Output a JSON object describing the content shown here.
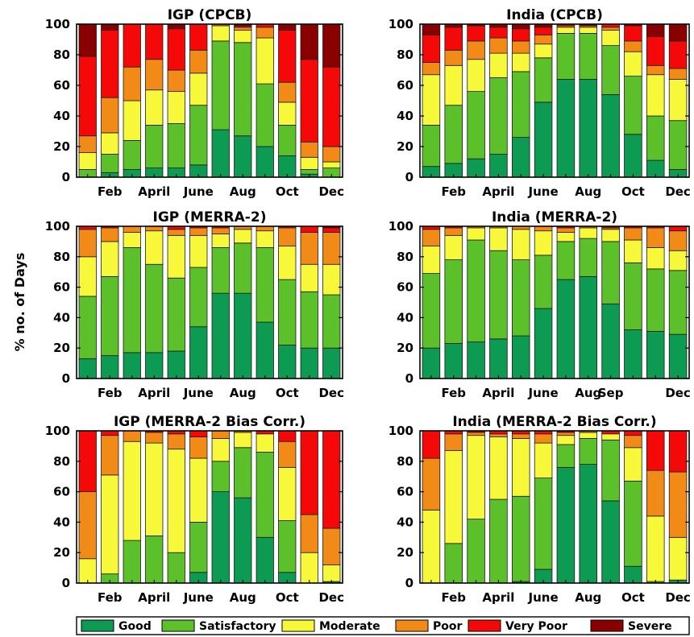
{
  "ylabel": "% no. of Days",
  "category_colors": {
    "Good": "#0d9a53",
    "Satisfactory": "#5cc02a",
    "Moderate": "#f8f83a",
    "Poor": "#f28a18",
    "Very Poor": "#f50808",
    "Severe": "#8a0000"
  },
  "legend": [
    "Good",
    "Satisfactory",
    "Moderate",
    "Poor",
    "Very Poor",
    "Severe"
  ],
  "chart_data": [
    {
      "type": "bar",
      "stacked": true,
      "title": "IGP (CPCB)",
      "ylim": [
        0,
        100
      ],
      "yticks": [
        0,
        20,
        40,
        60,
        80,
        100
      ],
      "categories": [
        "Jan",
        "Feb",
        "Mar",
        "April",
        "May",
        "June",
        "Jul",
        "Aug",
        "Sep",
        "Oct",
        "Nov",
        "Dec"
      ],
      "xtick_labels": [
        "",
        "Feb",
        "",
        "April",
        "",
        "June",
        "",
        "Aug",
        "",
        "Oct",
        "",
        "Dec"
      ],
      "series": [
        {
          "name": "Good",
          "values": [
            0,
            3,
            5,
            6,
            6,
            8,
            31,
            27,
            20,
            14,
            2,
            0
          ]
        },
        {
          "name": "Satisfactory",
          "values": [
            5,
            12,
            19,
            28,
            29,
            39,
            58,
            61,
            41,
            20,
            3,
            6
          ]
        },
        {
          "name": "Moderate",
          "values": [
            11,
            14,
            26,
            23,
            21,
            21,
            10,
            8,
            30,
            15,
            8,
            4
          ]
        },
        {
          "name": "Poor",
          "values": [
            11,
            23,
            22,
            20,
            14,
            15,
            1,
            2,
            7,
            13,
            10,
            10
          ]
        },
        {
          "name": "Very Poor",
          "values": [
            52,
            44,
            28,
            23,
            27,
            17,
            0,
            1,
            2,
            34,
            54,
            52
          ]
        },
        {
          "name": "Severe",
          "values": [
            21,
            4,
            0,
            0,
            3,
            0,
            0,
            1,
            0,
            4,
            23,
            28
          ]
        }
      ]
    },
    {
      "type": "bar",
      "stacked": true,
      "title": "India (CPCB)",
      "ylim": [
        0,
        100
      ],
      "yticks": [
        0,
        20,
        40,
        60,
        80,
        100
      ],
      "categories": [
        "Jan",
        "Feb",
        "Mar",
        "April",
        "May",
        "June",
        "Jul",
        "Aug",
        "Sep",
        "Oct",
        "Nov",
        "Dec"
      ],
      "xtick_labels": [
        "",
        "Feb",
        "",
        "April",
        "",
        "June",
        "",
        "Aug",
        "",
        "Oct",
        "",
        "Dec"
      ],
      "series": [
        {
          "name": "Good",
          "values": [
            7,
            9,
            12,
            15,
            26,
            49,
            64,
            64,
            54,
            28,
            11,
            5
          ]
        },
        {
          "name": "Satisfactory",
          "values": [
            27,
            38,
            44,
            50,
            43,
            29,
            30,
            30,
            32,
            38,
            29,
            32
          ]
        },
        {
          "name": "Moderate",
          "values": [
            33,
            26,
            21,
            16,
            12,
            9,
            4,
            4,
            10,
            16,
            27,
            27
          ]
        },
        {
          "name": "Poor",
          "values": [
            8,
            10,
            12,
            10,
            8,
            6,
            1,
            1,
            2,
            7,
            6,
            7
          ]
        },
        {
          "name": "Very Poor",
          "values": [
            18,
            15,
            10,
            7,
            8,
            5,
            1,
            0,
            2,
            10,
            19,
            18
          ]
        },
        {
          "name": "Severe",
          "values": [
            7,
            2,
            1,
            2,
            3,
            2,
            0,
            1,
            0,
            1,
            8,
            11
          ]
        }
      ]
    },
    {
      "type": "bar",
      "stacked": true,
      "title": "IGP (MERRA-2)",
      "ylim": [
        0,
        100
      ],
      "yticks": [
        0,
        20,
        40,
        60,
        80,
        100
      ],
      "categories": [
        "Jan",
        "Feb",
        "Mar",
        "April",
        "May",
        "June",
        "Jul",
        "Aug",
        "Sep",
        "Oct",
        "Nov",
        "Dec"
      ],
      "xtick_labels": [
        "",
        "Feb",
        "",
        "April",
        "",
        "June",
        "",
        "Aug",
        "",
        "Oct",
        "",
        "Dec"
      ],
      "series": [
        {
          "name": "Good",
          "values": [
            13,
            15,
            17,
            17,
            18,
            34,
            56,
            56,
            37,
            22,
            20,
            20
          ]
        },
        {
          "name": "Satisfactory",
          "values": [
            41,
            52,
            69,
            58,
            48,
            39,
            30,
            33,
            49,
            43,
            37,
            35
          ]
        },
        {
          "name": "Moderate",
          "values": [
            26,
            23,
            10,
            22,
            28,
            21,
            9,
            9,
            11,
            22,
            18,
            20
          ]
        },
        {
          "name": "Poor",
          "values": [
            18,
            9,
            4,
            3,
            4,
            5,
            4,
            2,
            3,
            12,
            21,
            21
          ]
        },
        {
          "name": "Very Poor",
          "values": [
            2,
            1,
            0,
            0,
            2,
            1,
            1,
            0,
            0,
            1,
            4,
            3
          ]
        },
        {
          "name": "Severe",
          "values": [
            0,
            0,
            0,
            0,
            0,
            0,
            0,
            0,
            0,
            0,
            0,
            1
          ]
        }
      ]
    },
    {
      "type": "bar",
      "stacked": true,
      "title": "India (MERRA-2)",
      "ylim": [
        0,
        100
      ],
      "yticks": [
        0,
        20,
        40,
        60,
        80,
        100
      ],
      "categories": [
        "Jan",
        "Feb",
        "Mar",
        "April",
        "May",
        "June",
        "Jul",
        "Aug",
        "Sep",
        "Oct",
        "Nov",
        "Dec"
      ],
      "xtick_labels": [
        "",
        "Feb",
        "",
        "April",
        "",
        "June",
        "",
        "Aug",
        "Sep",
        "",
        "",
        "Dec"
      ],
      "series": [
        {
          "name": "Good",
          "values": [
            20,
            23,
            24,
            26,
            28,
            46,
            65,
            67,
            49,
            32,
            31,
            29
          ]
        },
        {
          "name": "Satisfactory",
          "values": [
            49,
            55,
            67,
            58,
            50,
            35,
            25,
            25,
            41,
            44,
            41,
            42
          ]
        },
        {
          "name": "Moderate",
          "values": [
            18,
            16,
            8,
            15,
            20,
            16,
            6,
            7,
            8,
            15,
            14,
            13
          ]
        },
        {
          "name": "Poor",
          "values": [
            11,
            5,
            1,
            1,
            2,
            3,
            3,
            1,
            1,
            8,
            13,
            13
          ]
        },
        {
          "name": "Very Poor",
          "values": [
            2,
            1,
            0,
            0,
            0,
            0,
            1,
            0,
            1,
            1,
            1,
            3
          ]
        },
        {
          "name": "Severe",
          "values": [
            0,
            0,
            0,
            0,
            0,
            0,
            0,
            0,
            0,
            0,
            0,
            0
          ]
        }
      ]
    },
    {
      "type": "bar",
      "stacked": true,
      "title": "IGP (MERRA-2 Bias Corr.)",
      "ylim": [
        0,
        100
      ],
      "yticks": [
        0,
        20,
        40,
        60,
        80,
        100
      ],
      "categories": [
        "Jan",
        "Feb",
        "Mar",
        "April",
        "May",
        "June",
        "Jul",
        "Aug",
        "Sep",
        "Oct",
        "Nov",
        "Dec"
      ],
      "xtick_labels": [
        "",
        "Feb",
        "",
        "April",
        "",
        "June",
        "",
        "Aug",
        "",
        "Oct",
        "",
        "Dec"
      ],
      "series": [
        {
          "name": "Good",
          "values": [
            0,
            0,
            0,
            0,
            0,
            7,
            60,
            56,
            30,
            7,
            0,
            1
          ]
        },
        {
          "name": "Satisfactory",
          "values": [
            0,
            6,
            28,
            31,
            20,
            33,
            20,
            33,
            56,
            34,
            0,
            0
          ]
        },
        {
          "name": "Moderate",
          "values": [
            16,
            65,
            65,
            61,
            68,
            42,
            15,
            10,
            12,
            35,
            20,
            11
          ]
        },
        {
          "name": "Poor",
          "values": [
            44,
            26,
            7,
            7,
            10,
            14,
            5,
            1,
            0,
            17,
            25,
            24
          ]
        },
        {
          "name": "Very Poor",
          "values": [
            40,
            3,
            0,
            1,
            2,
            4,
            0,
            0,
            2,
            7,
            55,
            64
          ]
        },
        {
          "name": "Severe",
          "values": [
            0,
            0,
            0,
            0,
            0,
            0,
            0,
            0,
            0,
            0,
            0,
            0
          ]
        }
      ]
    },
    {
      "type": "bar",
      "stacked": true,
      "title": "India (MERRA-2 Bias Corr.)",
      "ylim": [
        0,
        100
      ],
      "yticks": [
        0,
        20,
        40,
        60,
        80,
        100
      ],
      "categories": [
        "Jan",
        "Feb",
        "Mar",
        "April",
        "May",
        "June",
        "Jul",
        "Aug",
        "Sep",
        "Oct",
        "Nov",
        "Dec"
      ],
      "xtick_labels": [
        "",
        "Feb",
        "",
        "April",
        "",
        "June",
        "",
        "Aug",
        "",
        "Oct",
        "",
        "Dec"
      ],
      "series": [
        {
          "name": "Good",
          "values": [
            0,
            0,
            0,
            0,
            1,
            9,
            76,
            78,
            54,
            11,
            0,
            2
          ]
        },
        {
          "name": "Satisfactory",
          "values": [
            0,
            26,
            42,
            55,
            56,
            60,
            15,
            17,
            40,
            56,
            1,
            0
          ]
        },
        {
          "name": "Moderate",
          "values": [
            48,
            61,
            55,
            41,
            38,
            23,
            6,
            4,
            4,
            22,
            43,
            28
          ]
        },
        {
          "name": "Poor",
          "values": [
            34,
            11,
            2,
            2,
            3,
            6,
            2,
            1,
            0,
            8,
            30,
            43
          ]
        },
        {
          "name": "Very Poor",
          "values": [
            18,
            2,
            1,
            2,
            2,
            2,
            1,
            0,
            2,
            3,
            26,
            27
          ]
        },
        {
          "name": "Severe",
          "values": [
            0,
            0,
            0,
            0,
            0,
            0,
            0,
            0,
            0,
            0,
            0,
            0
          ]
        }
      ]
    }
  ]
}
